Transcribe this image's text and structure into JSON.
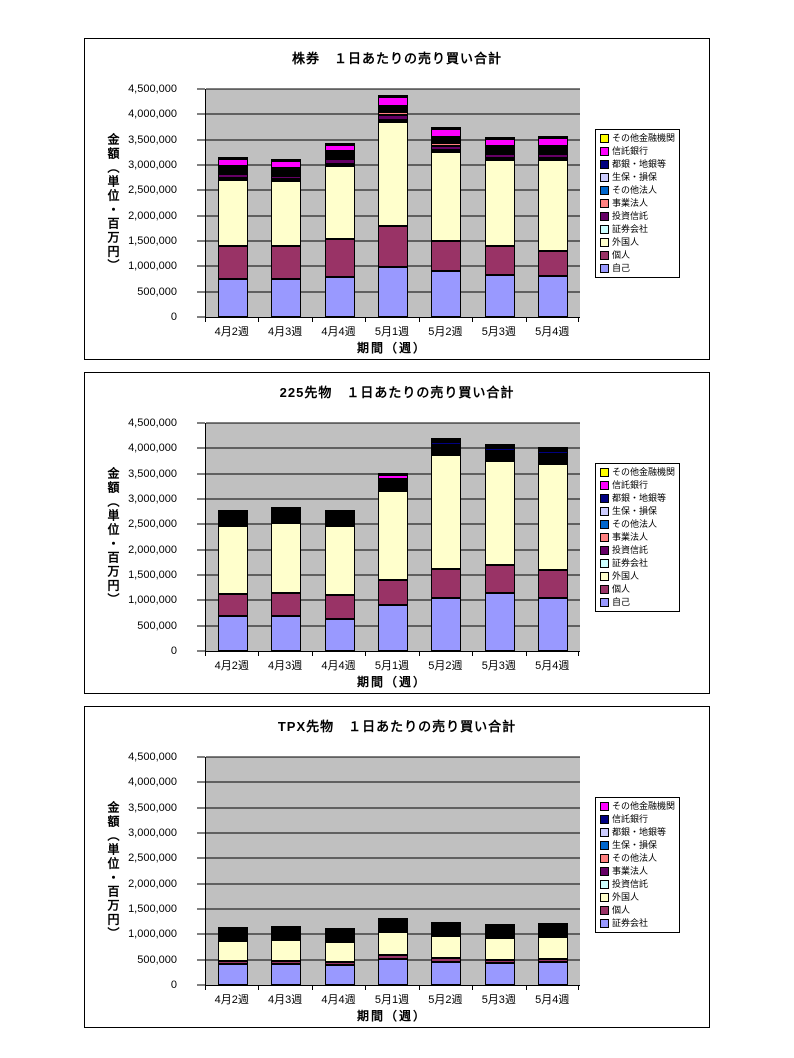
{
  "page": {
    "background": "#ffffff",
    "plot_background": "#c0c0c0",
    "gridline_color": "#000000"
  },
  "chart_data": [
    {
      "type": "bar",
      "stacked": true,
      "title": "株券　１日あたりの売り買い合計",
      "ylabel": "金額（単位・百万円）",
      "xlabel": "期間（週）",
      "ylim": [
        0,
        4500000
      ],
      "ytick_step": 500000,
      "ytick_labels": [
        "0",
        "500,000",
        "1,000,000",
        "1,500,000",
        "2,000,000",
        "2,500,000",
        "3,000,000",
        "3,500,000",
        "4,000,000",
        "4,500,000"
      ],
      "categories": [
        "4月2週",
        "4月3週",
        "4月4週",
        "5月1週",
        "5月2週",
        "5月3週",
        "5月4週"
      ],
      "legend_position": "right",
      "grid": true,
      "series_bottom_to_top": [
        {
          "name": "自己",
          "color": "#9999FF",
          "values": [
            750000,
            760000,
            780000,
            980000,
            900000,
            830000,
            800000
          ]
        },
        {
          "name": "個人",
          "color": "#993366",
          "values": [
            650000,
            640000,
            760000,
            820000,
            600000,
            580000,
            500000
          ]
        },
        {
          "name": "外国人",
          "color": "#FFFFCC",
          "values": [
            1300000,
            1280000,
            1450000,
            2050000,
            1750000,
            1680000,
            1800000
          ]
        },
        {
          "name": "証券会社",
          "color": "#CCFFFF",
          "values": [
            30000,
            30000,
            30000,
            40000,
            40000,
            30000,
            30000
          ]
        },
        {
          "name": "投資信託",
          "color": "#660066",
          "values": [
            80000,
            70000,
            80000,
            100000,
            90000,
            80000,
            80000
          ]
        },
        {
          "name": "事業法人",
          "color": "#FF8080",
          "values": [
            40000,
            40000,
            40000,
            50000,
            50000,
            40000,
            40000
          ]
        },
        {
          "name": "その他法人",
          "color": "#0066CC",
          "values": [
            20000,
            20000,
            20000,
            30000,
            30000,
            20000,
            20000
          ]
        },
        {
          "name": "生保・損保",
          "color": "#CCCCFF",
          "values": [
            20000,
            20000,
            20000,
            30000,
            20000,
            20000,
            20000
          ]
        },
        {
          "name": "都銀・地銀等",
          "color": "#000080",
          "values": [
            30000,
            30000,
            30000,
            40000,
            40000,
            30000,
            30000
          ]
        },
        {
          "name": "信託銀行",
          "color": "#FF00FF",
          "values": [
            150000,
            140000,
            130000,
            180000,
            160000,
            140000,
            150000
          ]
        },
        {
          "name": "その他金融機関",
          "color": "#FFFF00",
          "values": [
            30000,
            20000,
            20000,
            40000,
            30000,
            30000,
            30000
          ]
        }
      ]
    },
    {
      "type": "bar",
      "stacked": true,
      "title": "225先物　１日あたりの売り買い合計",
      "ylabel": "金額（単位・百万円）",
      "xlabel": "期間（週）",
      "ylim": [
        0,
        4500000
      ],
      "ytick_step": 500000,
      "ytick_labels": [
        "0",
        "500,000",
        "1,000,000",
        "1,500,000",
        "2,000,000",
        "2,500,000",
        "3,000,000",
        "3,500,000",
        "4,000,000",
        "4,500,000"
      ],
      "categories": [
        "4月2週",
        "4月3週",
        "4月4週",
        "5月1週",
        "5月2週",
        "5月3週",
        "5月4週"
      ],
      "legend_position": "right",
      "grid": true,
      "series_bottom_to_top": [
        {
          "name": "自己",
          "color": "#9999FF",
          "values": [
            700000,
            700000,
            630000,
            900000,
            1050000,
            1150000,
            1050000
          ]
        },
        {
          "name": "個人",
          "color": "#993366",
          "values": [
            420000,
            450000,
            480000,
            500000,
            560000,
            550000,
            550000
          ]
        },
        {
          "name": "外国人",
          "color": "#FFFFCC",
          "values": [
            1350000,
            1380000,
            1350000,
            1750000,
            2250000,
            2050000,
            2100000
          ]
        },
        {
          "name": "証券会社",
          "color": "#CCFFFF",
          "values": [
            20000,
            20000,
            20000,
            30000,
            30000,
            30000,
            30000
          ]
        },
        {
          "name": "投資信託",
          "color": "#660066",
          "values": [
            30000,
            30000,
            30000,
            40000,
            40000,
            40000,
            40000
          ]
        },
        {
          "name": "事業法人",
          "color": "#FF8080",
          "values": [
            20000,
            20000,
            20000,
            30000,
            30000,
            30000,
            30000
          ]
        },
        {
          "name": "その他法人",
          "color": "#0066CC",
          "values": [
            20000,
            20000,
            20000,
            30000,
            30000,
            30000,
            30000
          ]
        },
        {
          "name": "生保・損保",
          "color": "#CCCCFF",
          "values": [
            20000,
            20000,
            20000,
            20000,
            30000,
            30000,
            20000
          ]
        },
        {
          "name": "都銀・地銀等",
          "color": "#000080",
          "values": [
            30000,
            30000,
            30000,
            40000,
            60000,
            50000,
            60000
          ]
        },
        {
          "name": "信託銀行",
          "color": "#FF00FF",
          "values": [
            30000,
            30000,
            30000,
            80000,
            40000,
            40000,
            40000
          ]
        },
        {
          "name": "その他金融機関",
          "color": "#FFFF00",
          "values": [
            10000,
            10000,
            10000,
            20000,
            20000,
            20000,
            20000
          ]
        }
      ]
    },
    {
      "type": "bar",
      "stacked": true,
      "title": "TPX先物　１日あたりの売り買い合計",
      "ylabel": "金額（単位・百万円）",
      "xlabel": "期間（週）",
      "ylim": [
        0,
        4500000
      ],
      "ytick_step": 500000,
      "ytick_labels": [
        "0",
        "500,000",
        "1,000,000",
        "1,500,000",
        "2,000,000",
        "2,500,000",
        "3,000,000",
        "3,500,000",
        "4,000,000",
        "4,500,000"
      ],
      "categories": [
        "4月2週",
        "4月3週",
        "4月4週",
        "5月1週",
        "5月2週",
        "5月3週",
        "5月4週"
      ],
      "legend_position": "right",
      "grid": true,
      "series_bottom_to_top": [
        {
          "name": "証券会社",
          "color": "#9999FF",
          "values": [
            420000,
            420000,
            400000,
            520000,
            460000,
            440000,
            450000
          ]
        },
        {
          "name": "個人",
          "color": "#993366",
          "values": [
            60000,
            60000,
            60000,
            80000,
            70000,
            60000,
            60000
          ]
        },
        {
          "name": "外国人",
          "color": "#FFFFCC",
          "values": [
            380000,
            400000,
            390000,
            440000,
            440000,
            420000,
            430000
          ]
        },
        {
          "name": "投資信託",
          "color": "#CCFFFF",
          "values": [
            10000,
            10000,
            10000,
            15000,
            15000,
            10000,
            10000
          ]
        },
        {
          "name": "事業法人",
          "color": "#660066",
          "values": [
            5000,
            5000,
            5000,
            8000,
            8000,
            5000,
            5000
          ]
        },
        {
          "name": "その他法人",
          "color": "#FF8080",
          "values": [
            5000,
            5000,
            5000,
            8000,
            8000,
            5000,
            5000
          ]
        },
        {
          "name": "生保・損保",
          "color": "#0066CC",
          "values": [
            8000,
            8000,
            8000,
            10000,
            10000,
            8000,
            8000
          ]
        },
        {
          "name": "都銀・地銀等",
          "color": "#CCCCFF",
          "values": [
            10000,
            10000,
            10000,
            15000,
            15000,
            10000,
            12000
          ]
        },
        {
          "name": "信託銀行",
          "color": "#000080",
          "values": [
            20000,
            20000,
            20000,
            30000,
            25000,
            20000,
            25000
          ]
        },
        {
          "name": "その他金融機関",
          "color": "#FF00FF",
          "values": [
            5000,
            5000,
            5000,
            10000,
            8000,
            5000,
            8000
          ]
        }
      ]
    }
  ]
}
